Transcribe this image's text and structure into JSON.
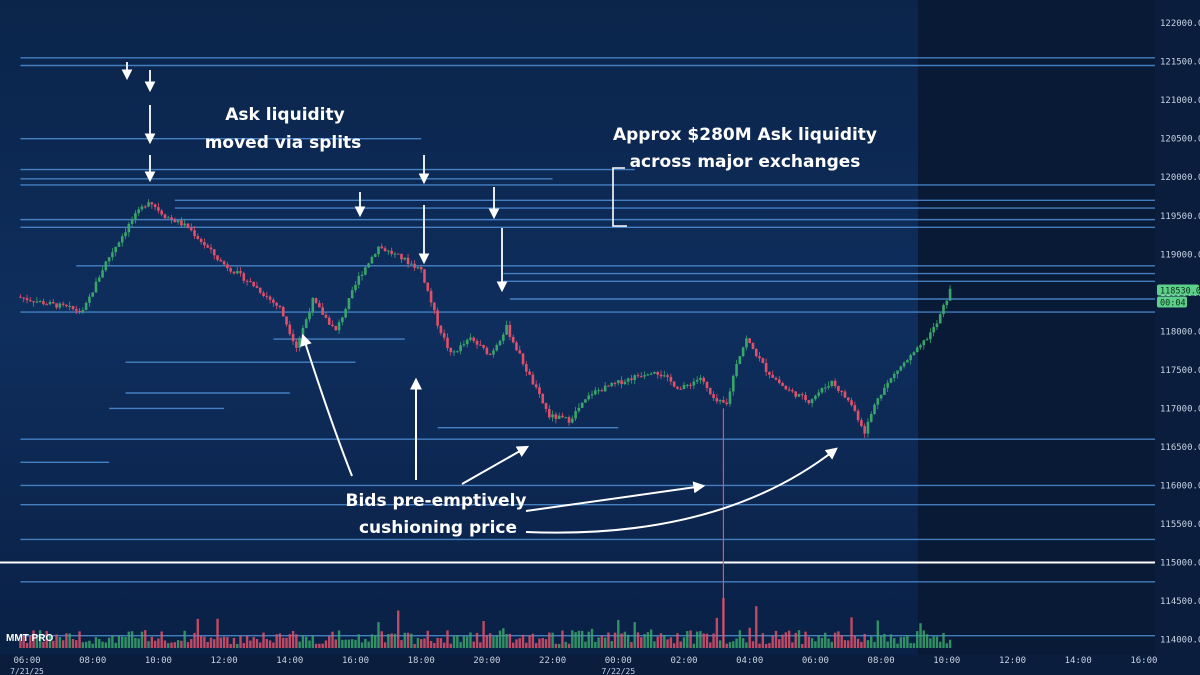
{
  "chart_data": {
    "type": "candlestick-heatmap",
    "brand": "MMT PRO",
    "ylim": [
      113800,
      122300
    ],
    "y_ticks": [
      "122000.0",
      "121500.0",
      "121000.0",
      "120500.0",
      "120000.0",
      "119500.0",
      "119000.0",
      "118500.0",
      "118000.0",
      "117500.0",
      "117000.0",
      "116500.0",
      "116000.0",
      "115500.0",
      "115000.0",
      "114500.0",
      "114000.0"
    ],
    "y_tick_values": [
      122000,
      121500,
      121000,
      120500,
      120000,
      119500,
      119000,
      118500,
      118000,
      117500,
      117000,
      116500,
      116000,
      115500,
      115000,
      114500,
      114000
    ],
    "x_ticks": [
      "06:00",
      "08:00",
      "10:00",
      "12:00",
      "14:00",
      "16:00",
      "18:00",
      "20:00",
      "22:00",
      "00:00",
      "02:00",
      "04:00",
      "06:00",
      "08:00",
      "10:00",
      "12:00",
      "14:00",
      "16:00"
    ],
    "x_tick_hours": [
      6,
      8,
      10,
      12,
      14,
      16,
      18,
      20,
      22,
      24,
      26,
      28,
      30,
      32,
      34,
      36,
      38,
      40
    ],
    "date_labels": [
      {
        "text": "7/21/25",
        "hour": 6
      },
      {
        "text": "7/22/25",
        "hour": 24
      }
    ],
    "current_price_label": "118530.0",
    "countdown_label": "00:04",
    "current_price": 118530,
    "support_level": 115000,
    "price_keypoints": [
      {
        "h": 5.8,
        "p": 118450
      },
      {
        "h": 6.5,
        "p": 118380
      },
      {
        "h": 7.2,
        "p": 118320
      },
      {
        "h": 7.8,
        "p": 118250
      },
      {
        "h": 8.5,
        "p": 118900
      },
      {
        "h": 9.3,
        "p": 119450
      },
      {
        "h": 9.8,
        "p": 119700
      },
      {
        "h": 10.3,
        "p": 119500
      },
      {
        "h": 11.0,
        "p": 119350
      },
      {
        "h": 12.0,
        "p": 118900
      },
      {
        "h": 13.0,
        "p": 118600
      },
      {
        "h": 13.8,
        "p": 118300
      },
      {
        "h": 14.3,
        "p": 117800
      },
      {
        "h": 14.8,
        "p": 118400
      },
      {
        "h": 15.5,
        "p": 118000
      },
      {
        "h": 16.2,
        "p": 118700
      },
      {
        "h": 16.8,
        "p": 119100
      },
      {
        "h": 17.5,
        "p": 118950
      },
      {
        "h": 18.1,
        "p": 118800
      },
      {
        "h": 18.6,
        "p": 118100
      },
      {
        "h": 19.0,
        "p": 117700
      },
      {
        "h": 19.6,
        "p": 117900
      },
      {
        "h": 20.2,
        "p": 117700
      },
      {
        "h": 20.7,
        "p": 118050
      },
      {
        "h": 21.3,
        "p": 117500
      },
      {
        "h": 22.0,
        "p": 116900
      },
      {
        "h": 22.6,
        "p": 116850
      },
      {
        "h": 23.3,
        "p": 117200
      },
      {
        "h": 24.2,
        "p": 117350
      },
      {
        "h": 25.2,
        "p": 117500
      },
      {
        "h": 26.0,
        "p": 117250
      },
      {
        "h": 26.6,
        "p": 117400
      },
      {
        "h": 27.0,
        "p": 117100
      },
      {
        "h": 27.4,
        "p": 117050
      },
      {
        "h": 27.7,
        "p": 117600
      },
      {
        "h": 28.0,
        "p": 117900
      },
      {
        "h": 28.6,
        "p": 117500
      },
      {
        "h": 29.2,
        "p": 117250
      },
      {
        "h": 29.9,
        "p": 117100
      },
      {
        "h": 30.6,
        "p": 117350
      },
      {
        "h": 31.2,
        "p": 117050
      },
      {
        "h": 31.6,
        "p": 116700
      },
      {
        "h": 32.0,
        "p": 117150
      },
      {
        "h": 32.6,
        "p": 117500
      },
      {
        "h": 33.3,
        "p": 117800
      },
      {
        "h": 33.8,
        "p": 118100
      },
      {
        "h": 34.2,
        "p": 118530
      }
    ],
    "wick_spike": {
      "h": 27.2,
      "low": 113900
    },
    "liquidity_levels": [
      {
        "p": 121550,
        "h0": 5.8,
        "h1": 40.5
      },
      {
        "p": 121450,
        "h0": 5.8,
        "h1": 40.5
      },
      {
        "p": 120500,
        "h0": 5.8,
        "h1": 18.0
      },
      {
        "p": 120100,
        "h0": 5.8,
        "h1": 24.5
      },
      {
        "p": 119980,
        "h0": 5.8,
        "h1": 22.0
      },
      {
        "p": 119900,
        "h0": 5.8,
        "h1": 40.5
      },
      {
        "p": 119700,
        "h0": 10.5,
        "h1": 40.5
      },
      {
        "p": 119600,
        "h0": 10.5,
        "h1": 40.5
      },
      {
        "p": 119450,
        "h0": 5.8,
        "h1": 40.5
      },
      {
        "p": 119350,
        "h0": 5.8,
        "h1": 40.5
      },
      {
        "p": 118850,
        "h0": 7.5,
        "h1": 40.5
      },
      {
        "p": 118750,
        "h0": 20.5,
        "h1": 40.5
      },
      {
        "p": 118650,
        "h0": 20.5,
        "h1": 40.5
      },
      {
        "p": 118420,
        "h0": 20.7,
        "h1": 40.5
      },
      {
        "p": 118250,
        "h0": 5.8,
        "h1": 40.5
      },
      {
        "p": 117900,
        "h0": 13.5,
        "h1": 17.5
      },
      {
        "p": 117600,
        "h0": 9.0,
        "h1": 16.0
      },
      {
        "p": 117200,
        "h0": 9.0,
        "h1": 14.0
      },
      {
        "p": 117000,
        "h0": 8.5,
        "h1": 12.0
      },
      {
        "p": 116750,
        "h0": 18.5,
        "h1": 24.0
      },
      {
        "p": 116600,
        "h0": 5.8,
        "h1": 40.5
      },
      {
        "p": 116300,
        "h0": 5.8,
        "h1": 8.5
      },
      {
        "p": 116000,
        "h0": 5.8,
        "h1": 40.5
      },
      {
        "p": 115750,
        "h0": 5.8,
        "h1": 40.5
      },
      {
        "p": 115300,
        "h0": 5.8,
        "h1": 40.5
      },
      {
        "p": 114750,
        "h0": 5.8,
        "h1": 40.5
      },
      {
        "p": 114050,
        "h0": 5.8,
        "h1": 40.5
      }
    ],
    "series": [
      {
        "name": "",
        "type": "candles"
      },
      {
        "name": "",
        "type": "volume"
      }
    ]
  },
  "annotations": {
    "ask_moved_line1": "Ask liquidity",
    "ask_moved_line2": "moved via splits",
    "ask_total_line1": "Approx $280M Ask liquidity",
    "ask_total_line2": "across major exchanges",
    "bids_line1": "Bids pre-emptively",
    "bids_line2": "cushioning price"
  },
  "colors": {
    "background": "#081a36",
    "heatmap": "#10305f",
    "level": "#4f8fd6",
    "bull": "#3aa56a",
    "bear": "#e0506a",
    "support": "#ffffff",
    "price_tag": "#5fd08a"
  }
}
